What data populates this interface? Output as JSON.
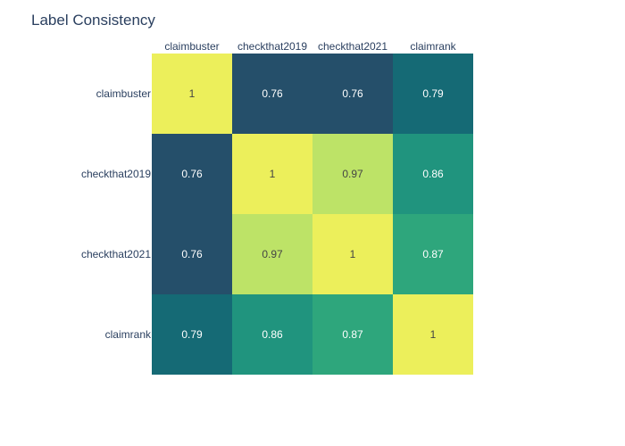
{
  "chart_data": {
    "type": "heatmap",
    "title": "Label Consistency",
    "x_categories": [
      "claimbuster",
      "checkthat2019",
      "checkthat2021",
      "claimrank"
    ],
    "y_categories": [
      "claimbuster",
      "checkthat2019",
      "checkthat2021",
      "claimrank"
    ],
    "values": [
      [
        1,
        0.76,
        0.76,
        0.79
      ],
      [
        0.76,
        1,
        0.97,
        0.86
      ],
      [
        0.76,
        0.97,
        1,
        0.87
      ],
      [
        0.79,
        0.86,
        0.87,
        1
      ]
    ],
    "cell_labels": [
      [
        "1",
        "0.76",
        "0.76",
        "0.79"
      ],
      [
        "0.76",
        "1",
        "0.97",
        "0.86"
      ],
      [
        "0.76",
        "0.97",
        "1",
        "0.87"
      ],
      [
        "0.79",
        "0.86",
        "0.87",
        "1"
      ]
    ],
    "x_axis_position": "top",
    "colorscale": "viridis",
    "colors": {
      "0.76": "#254f6a",
      "0.79": "#156a75",
      "0.86": "#20947e",
      "0.87": "#2ea67c",
      "0.97": "#bde367",
      "1": "#ecef5b"
    },
    "text_colors": {
      "dark_cell": "#ffffff",
      "light_cell": "#444444"
    },
    "showscale": false,
    "grid": false
  }
}
